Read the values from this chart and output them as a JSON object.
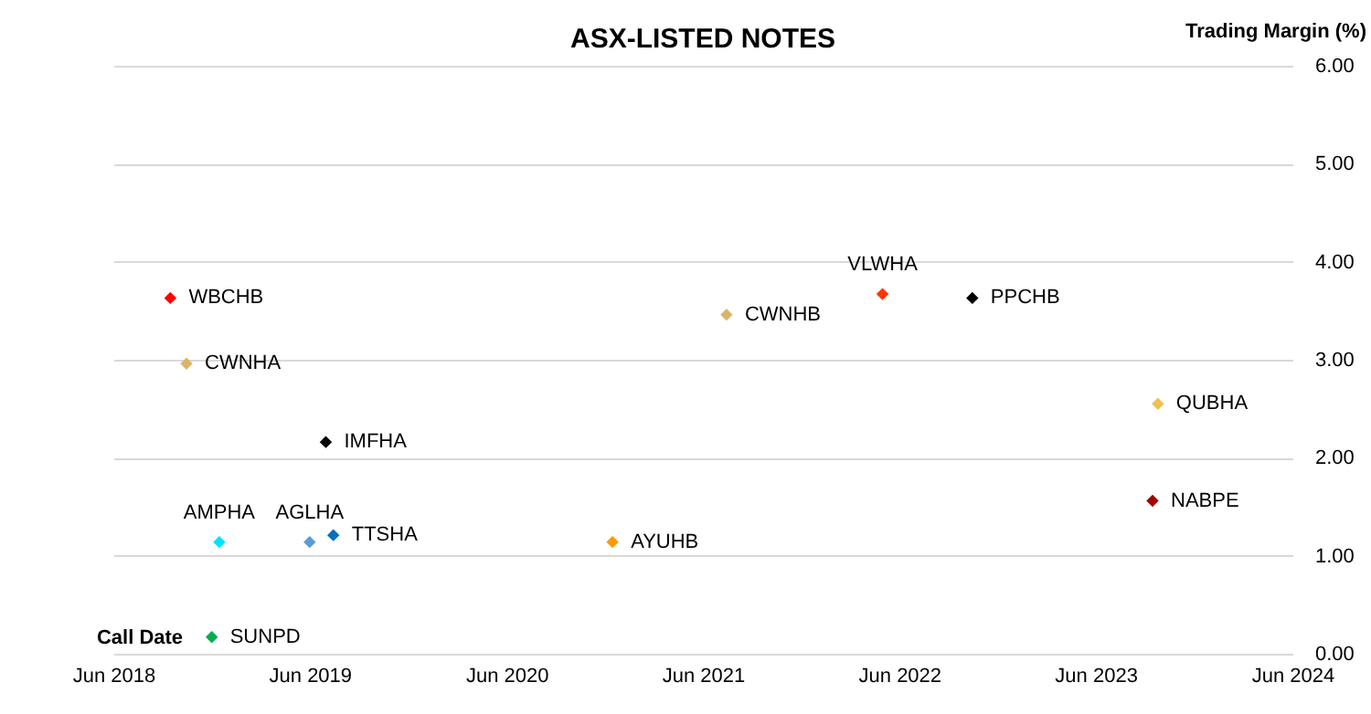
{
  "chart_data": {
    "type": "scatter",
    "title": "ASX-LISTED NOTES",
    "xlabel": "Call Date",
    "ylabel": "Trading Margin (%)",
    "x": [
      "2018-09-15",
      "2018-10-15",
      "2019-07-01",
      "2018-12-15",
      "2019-06-01",
      "2019-07-15",
      "2020-12-15",
      "2018-12-01",
      "2021-07-15",
      "2022-05-01",
      "2022-10-15",
      "2023-09-25",
      "2023-09-15"
    ],
    "values": [
      3.63,
      2.96,
      2.16,
      1.14,
      1.14,
      1.21,
      1.14,
      0.17,
      3.46,
      3.67,
      3.63,
      2.55,
      1.56
    ],
    "colors": [
      "#ff0000",
      "#d9b56a",
      "#000000",
      "#00e5ff",
      "#5b9bd5",
      "#0070c0",
      "#ff9900",
      "#00b050",
      "#d9b56a",
      "#ff3300",
      "#000000",
      "#f0c050",
      "#a00000"
    ],
    "marker": "diamond",
    "annotations": [
      {
        "text": "WBCHB",
        "x": "2018-09-15",
        "y": 3.63
      },
      {
        "text": "CWNHA",
        "x": "2018-10-15",
        "y": 2.96
      },
      {
        "text": "IMFHA",
        "x": "2019-07-01",
        "y": 2.16
      },
      {
        "text": "AMPHA",
        "x": "2018-12-15",
        "y": 1.14
      },
      {
        "text": "AGLHA",
        "x": "2019-06-01",
        "y": 1.14
      },
      {
        "text": "TTSHA",
        "x": "2019-07-15",
        "y": 1.21
      },
      {
        "text": "AYUHB",
        "x": "2020-12-15",
        "y": 1.14
      },
      {
        "text": "SUNPD",
        "x": "2018-12-01",
        "y": 0.17
      },
      {
        "text": "CWNHB",
        "x": "2021-07-15",
        "y": 3.46
      },
      {
        "text": "VLWHA",
        "x": "2022-05-01",
        "y": 3.67
      },
      {
        "text": "PPCHB",
        "x": "2022-10-15",
        "y": 3.63
      },
      {
        "text": "QUBHA",
        "x": "2023-09-25",
        "y": 2.55
      },
      {
        "text": "NABPE",
        "x": "2023-09-15",
        "y": 1.56
      }
    ],
    "xlim": [
      "2018-06",
      "2024-06"
    ],
    "xticks": [
      {
        "value": "2018-06",
        "label": "Jun 2018"
      },
      {
        "value": "2019-06",
        "label": "Jun 2019"
      },
      {
        "value": "2020-06",
        "label": "Jun 2020"
      },
      {
        "value": "2021-06",
        "label": "Jun 2021"
      },
      {
        "value": "2022-06",
        "label": "Jun 2022"
      },
      {
        "value": "2023-06",
        "label": "Jun 2023"
      },
      {
        "value": "2024-06",
        "label": "Jun 2024"
      }
    ],
    "ylim": [
      0,
      6
    ],
    "yticks": [
      {
        "value": 0,
        "label": "0.00"
      },
      {
        "value": 1,
        "label": "1.00"
      },
      {
        "value": 2,
        "label": "2.00"
      },
      {
        "value": 3,
        "label": "3.00"
      },
      {
        "value": 4,
        "label": "4.00"
      },
      {
        "value": 5,
        "label": "5.00"
      },
      {
        "value": 6,
        "label": "6.00"
      }
    ],
    "grid": "y"
  }
}
